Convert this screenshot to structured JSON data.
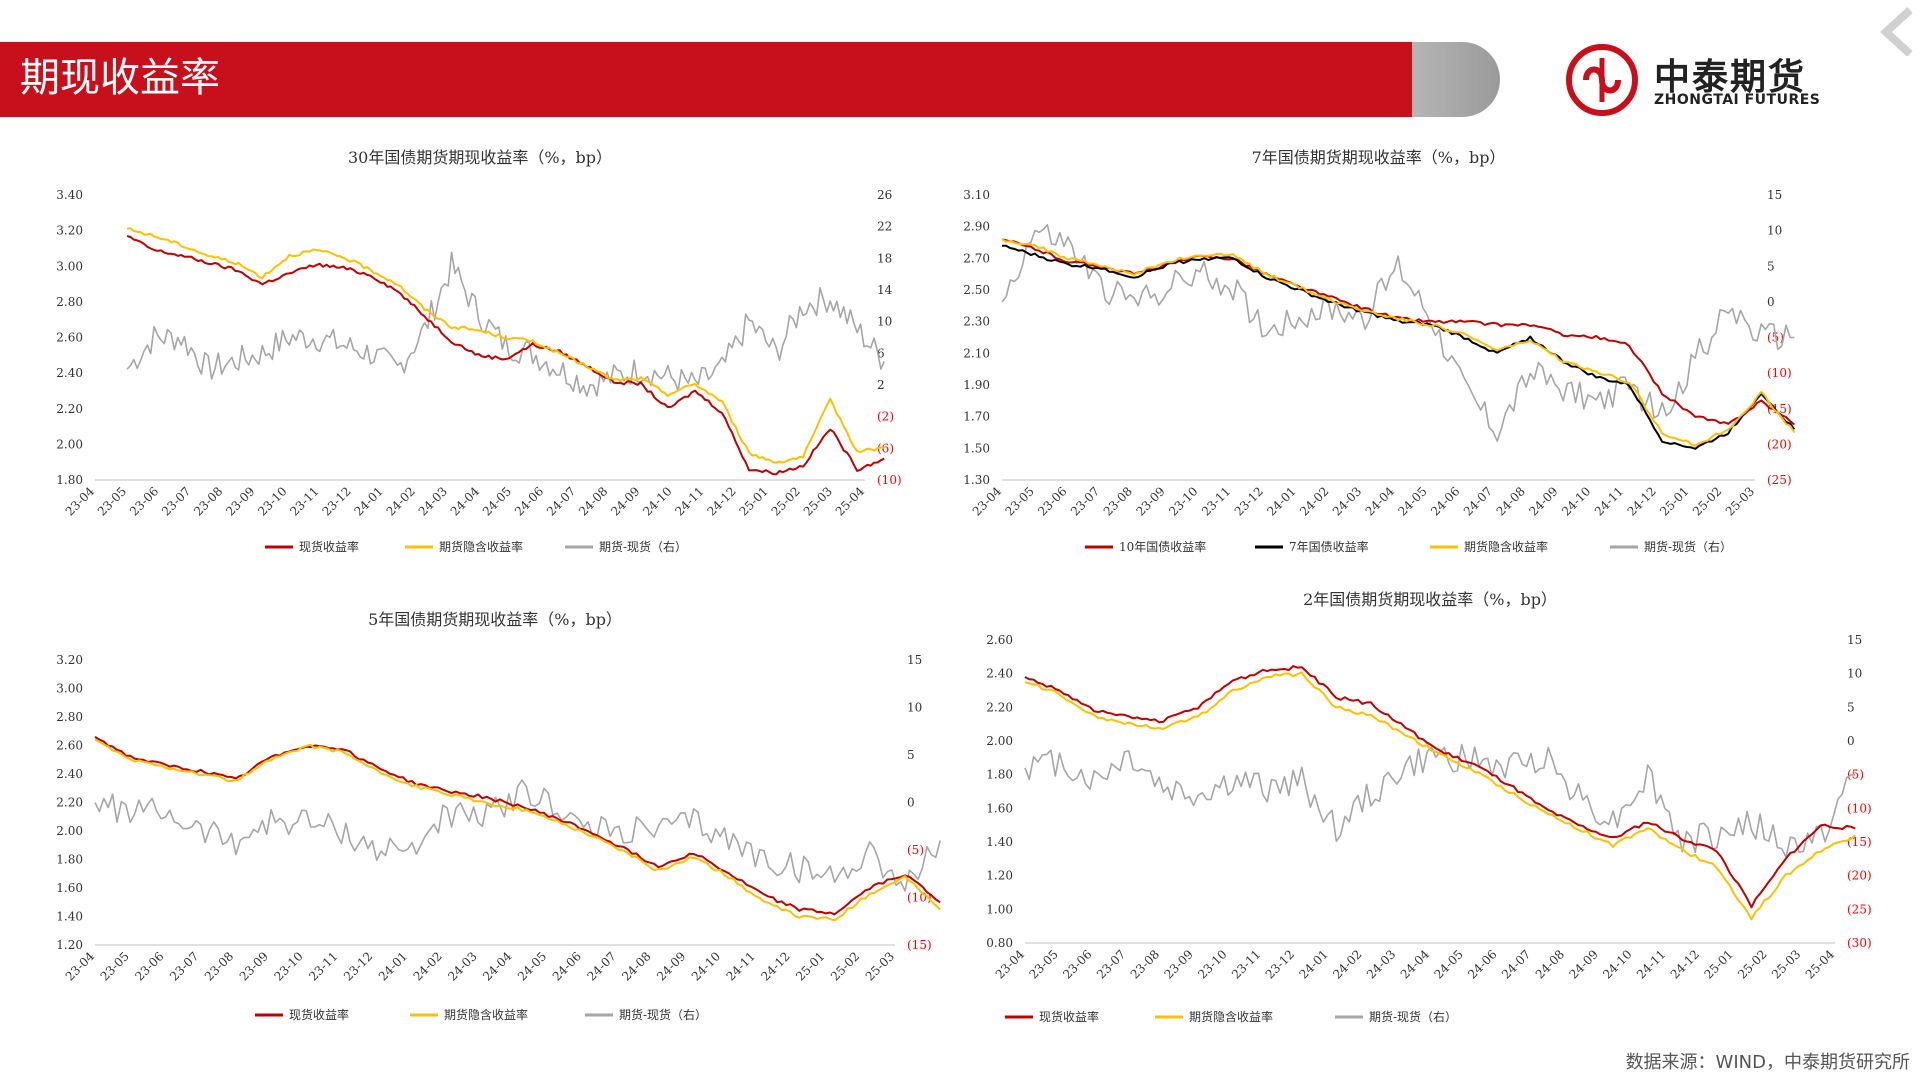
{
  "header": {
    "title": "期现收益率"
  },
  "logo": {
    "cn": "中泰期货",
    "en": "ZHONGTAI FUTURES"
  },
  "footer": {
    "source": "数据来源：WIND，中泰期货研究所"
  },
  "colors": {
    "spot": "#c00000",
    "implied": "#ffc000",
    "spread": "#a6a6a6",
    "ty7": "#000000",
    "negative_label": "#ff0000",
    "brand_red": "#c8101d"
  },
  "chart_data": [
    {
      "id": "c30",
      "type": "line",
      "title": "30年国债期货期现收益率（%，bp）",
      "x_labels": [
        "23-04",
        "23-05",
        "23-06",
        "23-07",
        "23-08",
        "23-09",
        "23-10",
        "23-11",
        "23-12",
        "24-01",
        "24-02",
        "24-03",
        "24-04",
        "24-05",
        "24-06",
        "24-07",
        "24-08",
        "24-09",
        "24-10",
        "24-11",
        "24-12",
        "25-01",
        "25-02",
        "25-03",
        "25-04"
      ],
      "left_axis": {
        "min": 1.8,
        "max": 3.4,
        "ticks": [
          "3.40",
          "3.20",
          "3.00",
          "2.80",
          "2.60",
          "2.40",
          "2.20",
          "2.00",
          "1.80"
        ]
      },
      "right_axis": {
        "min": -10,
        "max": 26,
        "ticks": [
          "26",
          "22",
          "18",
          "14",
          "10",
          "6",
          "2",
          "(2)",
          "(6)",
          "(10)"
        ]
      },
      "series": [
        {
          "name": "现货收益率",
          "axis": "left",
          "color_key": "spot",
          "start": 1,
          "end": 24.6,
          "points": [
            3.17,
            3.09,
            3.06,
            3.02,
            2.98,
            2.9,
            2.96,
            3.01,
            2.99,
            2.95,
            2.86,
            2.72,
            2.58,
            2.5,
            2.48,
            2.56,
            2.52,
            2.44,
            2.35,
            2.34,
            2.2,
            2.3,
            2.18,
            1.86,
            1.84,
            1.88,
            2.09,
            1.86,
            1.92
          ]
        },
        {
          "name": "期货隐含收益率",
          "axis": "left",
          "color_key": "implied",
          "start": 1,
          "end": 24.6,
          "points": [
            3.21,
            3.17,
            3.12,
            3.06,
            3.02,
            2.94,
            3.06,
            3.09,
            3.05,
            2.98,
            2.9,
            2.76,
            2.66,
            2.64,
            2.6,
            2.58,
            2.51,
            2.44,
            2.36,
            2.37,
            2.28,
            2.34,
            2.24,
            1.95,
            1.9,
            1.93,
            2.25,
            1.96,
            1.98
          ]
        },
        {
          "name": "期货-现货（右）",
          "axis": "right",
          "color_key": "spread",
          "start": 1,
          "end": 24.6,
          "points": [
            4,
            8,
            8,
            4,
            5,
            6,
            8,
            8,
            7,
            6,
            4,
            9,
            17,
            11,
            7,
            6,
            4,
            2,
            3,
            4,
            3,
            2,
            4,
            10,
            6,
            12,
            13,
            9,
            5
          ]
        }
      ],
      "legend": [
        "现货收益率",
        "期货隐含收益率",
        "期货-现货（右）"
      ]
    },
    {
      "id": "c7",
      "type": "line",
      "title": "7年国债期货期现收益率（%，bp）",
      "x_labels": [
        "23-04",
        "23-05",
        "23-06",
        "23-07",
        "23-08",
        "23-09",
        "23-10",
        "23-11",
        "23-12",
        "24-01",
        "24-02",
        "24-03",
        "24-04",
        "24-05",
        "24-06",
        "24-07",
        "24-08",
        "24-09",
        "24-10",
        "24-11",
        "24-12",
        "25-01",
        "25-02",
        "25-03"
      ],
      "left_axis": {
        "min": 1.3,
        "max": 3.1,
        "ticks": [
          "3.10",
          "2.90",
          "2.70",
          "2.50",
          "2.30",
          "2.10",
          "1.90",
          "1.70",
          "1.50",
          "1.30"
        ]
      },
      "right_axis": {
        "min": -25,
        "max": 15,
        "ticks": [
          "15",
          "10",
          "5",
          "0",
          "(5)",
          "(10)",
          "(15)",
          "(20)",
          "(25)"
        ]
      },
      "series": [
        {
          "name": "10年国债收益率",
          "axis": "left",
          "color_key": "spot",
          "start": 0,
          "end": 24.2,
          "points": [
            2.82,
            2.76,
            2.68,
            2.65,
            2.6,
            2.66,
            2.71,
            2.7,
            2.6,
            2.52,
            2.45,
            2.38,
            2.32,
            2.3,
            2.3,
            2.28,
            2.28,
            2.22,
            2.2,
            2.15,
            1.85,
            1.7,
            1.65,
            1.8,
            1.65
          ]
        },
        {
          "name": "7年国债收益率",
          "axis": "left",
          "color_key": "ty7",
          "start": 0,
          "end": 24.2,
          "points": [
            2.78,
            2.72,
            2.66,
            2.64,
            2.58,
            2.66,
            2.7,
            2.7,
            2.58,
            2.5,
            2.42,
            2.36,
            2.3,
            2.28,
            2.2,
            2.1,
            2.2,
            2.05,
            1.95,
            1.9,
            1.55,
            1.5,
            1.6,
            1.85,
            1.62
          ]
        },
        {
          "name": "期货隐含收益率",
          "axis": "left",
          "color_key": "implied",
          "start": 0,
          "end": 24.2,
          "points": [
            2.82,
            2.78,
            2.7,
            2.65,
            2.6,
            2.68,
            2.72,
            2.72,
            2.6,
            2.52,
            2.43,
            2.37,
            2.32,
            2.28,
            2.22,
            2.12,
            2.18,
            2.05,
            1.98,
            1.92,
            1.6,
            1.52,
            1.62,
            1.85,
            1.6
          ]
        },
        {
          "name": "期货-现货（右）",
          "axis": "right",
          "color_key": "spread",
          "start": 0,
          "end": 24.2,
          "points": [
            0,
            10,
            8,
            2,
            0,
            2,
            4,
            2,
            -4,
            -2,
            -1,
            -2,
            5,
            -2,
            -12,
            -18,
            -10,
            -12,
            -14,
            -12,
            -16,
            -8,
            -1,
            -5,
            -5
          ]
        }
      ],
      "legend": [
        "10年国债收益率",
        "7年国债收益率",
        "期货隐含收益率",
        "期货-现货（右）"
      ]
    },
    {
      "id": "c5",
      "type": "line",
      "title": "5年国债期货期现收益率（%，bp）",
      "x_labels": [
        "23-04",
        "23-05",
        "23-06",
        "23-07",
        "23-08",
        "23-09",
        "23-10",
        "23-11",
        "23-12",
        "24-01",
        "24-02",
        "24-03",
        "24-04",
        "24-05",
        "24-06",
        "24-07",
        "24-08",
        "24-09",
        "24-10",
        "24-11",
        "24-12",
        "25-01",
        "25-02",
        "25-03"
      ],
      "left_axis": {
        "min": 1.2,
        "max": 3.2,
        "ticks": [
          "3.20",
          "3.00",
          "2.80",
          "2.60",
          "2.40",
          "2.20",
          "2.00",
          "1.80",
          "1.60",
          "1.40",
          "1.20"
        ]
      },
      "right_axis": {
        "min": -15,
        "max": 15,
        "ticks": [
          "15",
          "10",
          "5",
          "0",
          "(5)",
          "(10)",
          "(15)"
        ]
      },
      "series": [
        {
          "name": "现货收益率",
          "axis": "left",
          "color_key": "spot",
          "start": 0,
          "end": 24.3,
          "points": [
            2.66,
            2.52,
            2.46,
            2.42,
            2.36,
            2.52,
            2.6,
            2.58,
            2.45,
            2.34,
            2.28,
            2.24,
            2.18,
            2.1,
            2.0,
            1.88,
            1.75,
            1.85,
            1.7,
            1.55,
            1.45,
            1.42,
            1.6,
            1.7,
            1.5
          ]
        },
        {
          "name": "期货隐含收益率",
          "axis": "left",
          "color_key": "implied",
          "start": 0,
          "end": 24.3,
          "points": [
            2.64,
            2.5,
            2.45,
            2.4,
            2.35,
            2.5,
            2.6,
            2.56,
            2.42,
            2.32,
            2.26,
            2.2,
            2.16,
            2.08,
            1.98,
            1.86,
            1.72,
            1.82,
            1.68,
            1.5,
            1.4,
            1.38,
            1.56,
            1.68,
            1.45
          ]
        },
        {
          "name": "期货-现货（右）",
          "axis": "right",
          "color_key": "spread",
          "start": 0,
          "end": 24.3,
          "points": [
            0,
            -1,
            -1,
            -3,
            -4,
            -2,
            -2,
            -3,
            -5,
            -5,
            -1,
            -2,
            1,
            0,
            -3,
            -3,
            -3,
            -2,
            -4,
            -6,
            -7,
            -8,
            -5,
            -9,
            -4
          ]
        }
      ],
      "legend": [
        "现货收益率",
        "期货隐含收益率",
        "期货-现货（右）"
      ]
    },
    {
      "id": "c2",
      "type": "line",
      "title": "2年国债期货期现收益率（%，bp）",
      "x_labels": [
        "23-04",
        "23-05",
        "23-06",
        "23-07",
        "23-08",
        "23-09",
        "23-10",
        "23-11",
        "23-12",
        "24-01",
        "24-02",
        "24-03",
        "24-04",
        "24-05",
        "24-06",
        "24-07",
        "24-08",
        "24-09",
        "24-10",
        "24-11",
        "24-12",
        "25-01",
        "25-02",
        "25-03",
        "25-04"
      ],
      "left_axis": {
        "min": 0.8,
        "max": 2.6,
        "ticks": [
          "2.60",
          "2.40",
          "2.20",
          "2.00",
          "1.80",
          "1.60",
          "1.40",
          "1.20",
          "1.00",
          "0.80"
        ]
      },
      "right_axis": {
        "min": -30,
        "max": 15,
        "ticks": [
          "15",
          "10",
          "5",
          "0",
          "(5)",
          "(10)",
          "(15)",
          "(20)",
          "(25)",
          "(30)"
        ]
      },
      "series": [
        {
          "name": "现货收益率",
          "axis": "left",
          "color_key": "spot",
          "start": 0,
          "end": 24.6,
          "points": [
            2.38,
            2.3,
            2.18,
            2.14,
            2.12,
            2.2,
            2.36,
            2.42,
            2.44,
            2.26,
            2.22,
            2.08,
            1.94,
            1.86,
            1.74,
            1.6,
            1.5,
            1.42,
            1.52,
            1.42,
            1.35,
            1.02,
            1.3,
            1.5,
            1.48
          ]
        },
        {
          "name": "期货隐含收益率",
          "axis": "left",
          "color_key": "implied",
          "start": 0,
          "end": 24.6,
          "points": [
            2.35,
            2.28,
            2.15,
            2.1,
            2.08,
            2.14,
            2.3,
            2.38,
            2.4,
            2.2,
            2.15,
            2.04,
            1.92,
            1.82,
            1.7,
            1.58,
            1.48,
            1.38,
            1.48,
            1.35,
            1.25,
            0.95,
            1.2,
            1.35,
            1.44
          ]
        },
        {
          "name": "期货-现货（右）",
          "axis": "right",
          "color_key": "spread",
          "start": 0,
          "end": 24.6,
          "points": [
            -4,
            -3,
            -6,
            -2,
            -7,
            -8,
            -6,
            -7,
            -6,
            -13,
            -8,
            -4,
            -2,
            -3,
            -4,
            -2,
            -8,
            -12,
            -5,
            -15,
            -14,
            -12,
            -16,
            -14,
            -5
          ]
        }
      ],
      "legend": [
        "现货收益率",
        "期货隐含收益率",
        "期货-现货（右）"
      ]
    }
  ]
}
